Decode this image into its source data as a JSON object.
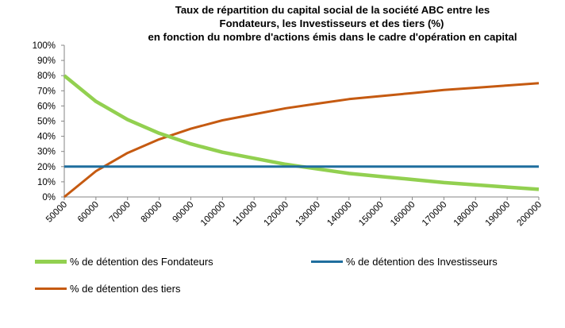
{
  "chart_data": {
    "type": "line",
    "title_lines": [
      "Taux de répartition du capital social de la société ABC entre les",
      "Fondateurs, les Investisseurs et des tiers (%)",
      "en fonction du nombre d'actions émis dans le cadre d'opération en capital"
    ],
    "categories": [
      "50000",
      "60000",
      "70000",
      "80000",
      "90000",
      "100000",
      "110000",
      "120000",
      "130000",
      "140000",
      "150000",
      "160000",
      "170000",
      "180000",
      "190000",
      "200000"
    ],
    "y_ticks": [
      "0%",
      "10%",
      "20%",
      "30%",
      "40%",
      "50%",
      "60%",
      "70%",
      "80%",
      "90%",
      "100%"
    ],
    "ylim": [
      0,
      100
    ],
    "grid": false,
    "legend_position": "bottom",
    "series": [
      {
        "name": "% de détention des Fondateurs",
        "color": "#92d050",
        "values": [
          80,
          63,
          51,
          42,
          35,
          29.5,
          25.5,
          21.5,
          18.5,
          15.5,
          13.5,
          11.5,
          9.5,
          8,
          6.5,
          5
        ]
      },
      {
        "name": "% de détention des Investisseurs",
        "color": "#1f6e9e",
        "values": [
          20,
          20,
          20,
          20,
          20,
          20,
          20,
          20,
          20,
          20,
          20,
          20,
          20,
          20,
          20,
          20
        ]
      },
      {
        "name": "% de détention des tiers",
        "color": "#c55a11",
        "values": [
          0,
          17,
          29,
          38,
          45,
          50.5,
          54.5,
          58.5,
          61.5,
          64.5,
          66.5,
          68.5,
          70.5,
          72,
          73.5,
          75
        ]
      }
    ]
  }
}
